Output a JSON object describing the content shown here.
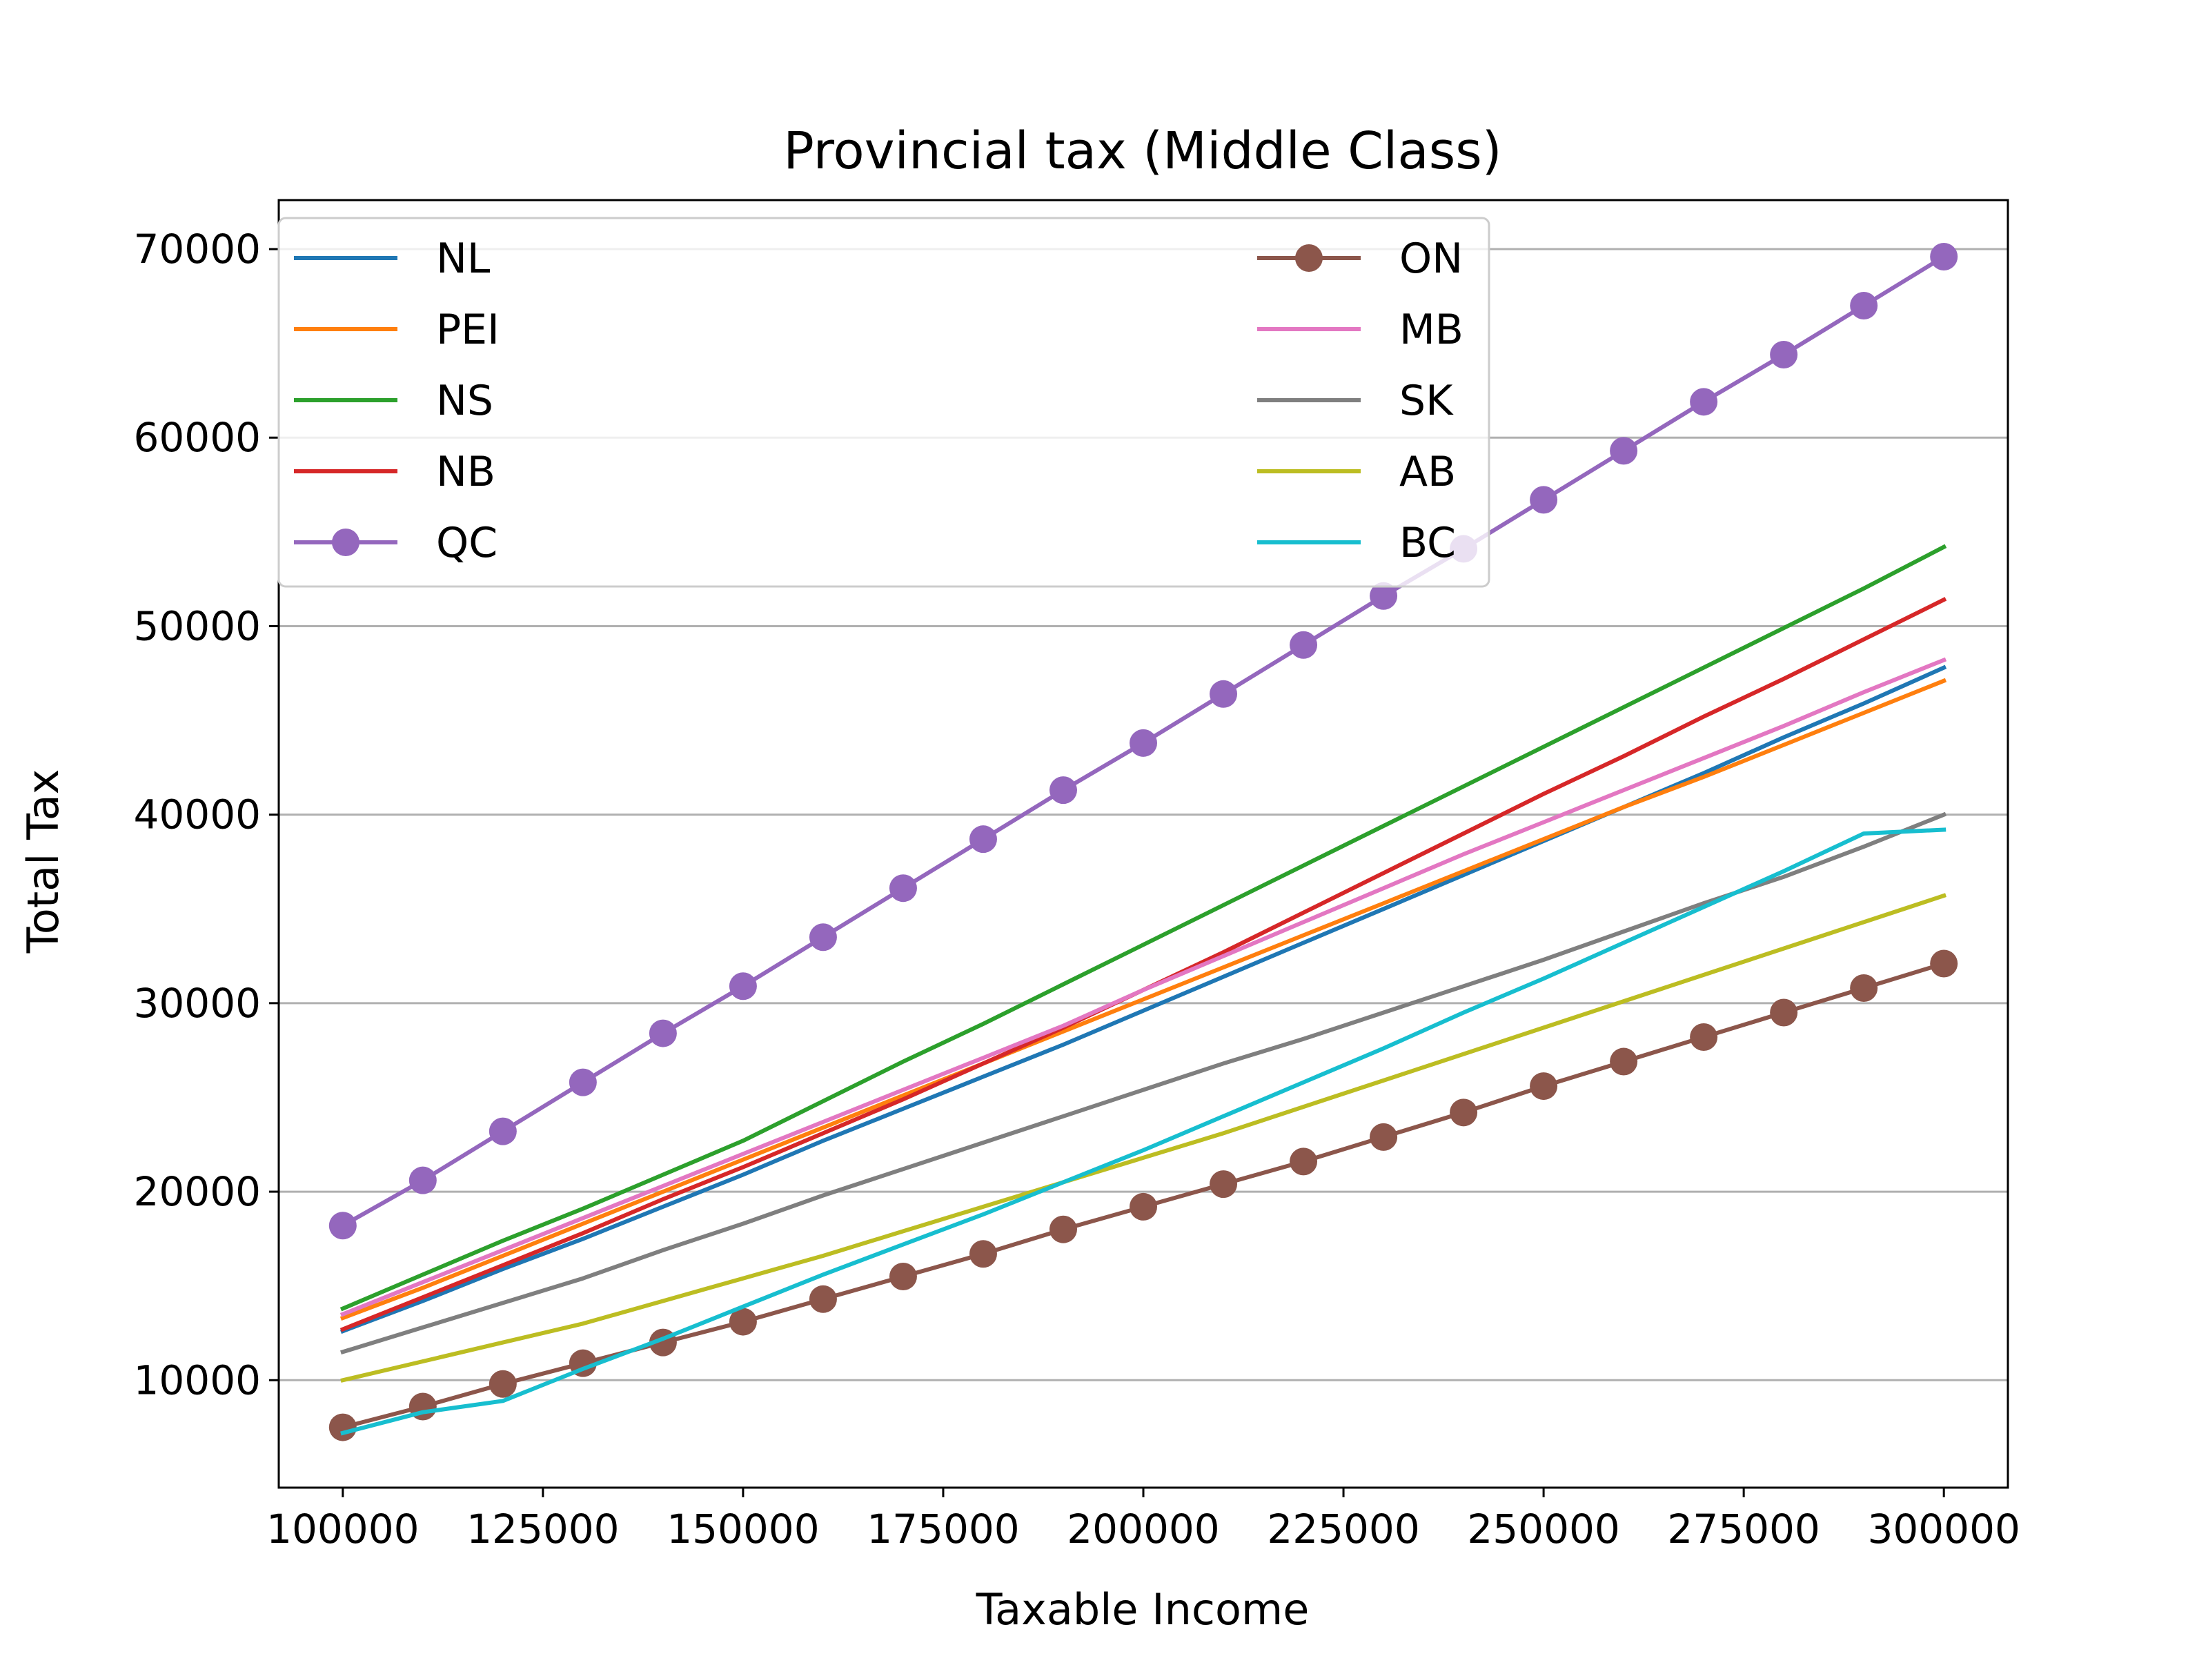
{
  "chart_data": {
    "type": "line",
    "title": "Provincial tax (Middle Class)",
    "xlabel": "Taxable Income",
    "ylabel": "Total Tax",
    "xlim": [
      92000,
      308000
    ],
    "ylim": [
      4300,
      72600
    ],
    "x_ticks": [
      100000,
      125000,
      150000,
      175000,
      200000,
      225000,
      250000,
      275000,
      300000
    ],
    "y_ticks": [
      10000,
      20000,
      30000,
      40000,
      50000,
      60000,
      70000
    ],
    "grid": "horizontal",
    "legend_position": "upper-left",
    "legend_columns": 2,
    "x": [
      100000,
      110000,
      120000,
      130000,
      140000,
      150000,
      160000,
      170000,
      180000,
      190000,
      200000,
      210000,
      220000,
      230000,
      240000,
      250000,
      260000,
      270000,
      280000,
      290000,
      300000
    ],
    "series": [
      {
        "name": "NL",
        "color": "#1f77b4",
        "marker": "none",
        "values": [
          12600,
          14200,
          15900,
          17500,
          19200,
          20900,
          22700,
          24400,
          26100,
          27800,
          29600,
          31400,
          33200,
          35000,
          36800,
          38600,
          40400,
          42200,
          44100,
          45900,
          47800
        ]
      },
      {
        "name": "PEI",
        "color": "#ff7f0e",
        "marker": "none",
        "values": [
          13300,
          14900,
          16600,
          18300,
          20000,
          21700,
          23400,
          25100,
          26800,
          28500,
          30200,
          31900,
          33600,
          35300,
          37000,
          38700,
          40400,
          42000,
          43700,
          45400,
          47100
        ]
      },
      {
        "name": "NS",
        "color": "#2ca02c",
        "marker": "none",
        "values": [
          13800,
          15600,
          17400,
          19100,
          20900,
          22700,
          24800,
          26900,
          28900,
          31000,
          33100,
          35200,
          37300,
          39400,
          41500,
          43600,
          45700,
          47800,
          49900,
          52000,
          54200
        ]
      },
      {
        "name": "NB",
        "color": "#d62728",
        "marker": "none",
        "values": [
          12700,
          14400,
          16100,
          17800,
          19600,
          21300,
          23100,
          24900,
          26800,
          28700,
          30700,
          32700,
          34800,
          36900,
          39000,
          41100,
          43100,
          45200,
          47200,
          49300,
          51400
        ]
      },
      {
        "name": "QC",
        "color": "#9467bd",
        "marker": "circle",
        "values": [
          18200,
          20600,
          23200,
          25800,
          28400,
          30900,
          33500,
          36100,
          38700,
          41300,
          43800,
          46400,
          49000,
          51600,
          54100,
          56700,
          59300,
          61900,
          64400,
          67000,
          69600
        ]
      },
      {
        "name": "ON",
        "color": "#8c564b",
        "marker": "circle",
        "values": [
          7500,
          8600,
          9800,
          10900,
          12000,
          13100,
          14300,
          15500,
          16700,
          18000,
          19200,
          20400,
          21600,
          22900,
          24200,
          25600,
          26900,
          28200,
          29500,
          30800,
          32100
        ]
      },
      {
        "name": "MB",
        "color": "#e377c2",
        "marker": "none",
        "values": [
          13500,
          15200,
          16900,
          18600,
          20300,
          22000,
          23700,
          25400,
          27100,
          28800,
          30700,
          32500,
          34300,
          36100,
          37900,
          39600,
          41300,
          43000,
          44700,
          46500,
          48200
        ]
      },
      {
        "name": "SK",
        "color": "#7f7f7f",
        "marker": "none",
        "values": [
          11500,
          12800,
          14100,
          15400,
          16900,
          18300,
          19800,
          21200,
          22600,
          24000,
          25400,
          26800,
          28100,
          29500,
          30900,
          32300,
          33800,
          35300,
          36700,
          38300,
          40000
        ]
      },
      {
        "name": "AB",
        "color": "#bcbd22",
        "marker": "none",
        "values": [
          10000,
          11000,
          12000,
          13000,
          14200,
          15400,
          16600,
          17900,
          19200,
          20500,
          21800,
          23100,
          24500,
          25900,
          27300,
          28700,
          30100,
          31500,
          32900,
          34300,
          35700
        ]
      },
      {
        "name": "BC",
        "color": "#17becf",
        "marker": "none",
        "values": [
          7200,
          8300,
          8900,
          10600,
          12200,
          13900,
          15600,
          17200,
          18800,
          20500,
          22200,
          24000,
          25800,
          27600,
          29500,
          31300,
          33200,
          35100,
          37000,
          39000,
          39200
        ]
      }
    ]
  }
}
